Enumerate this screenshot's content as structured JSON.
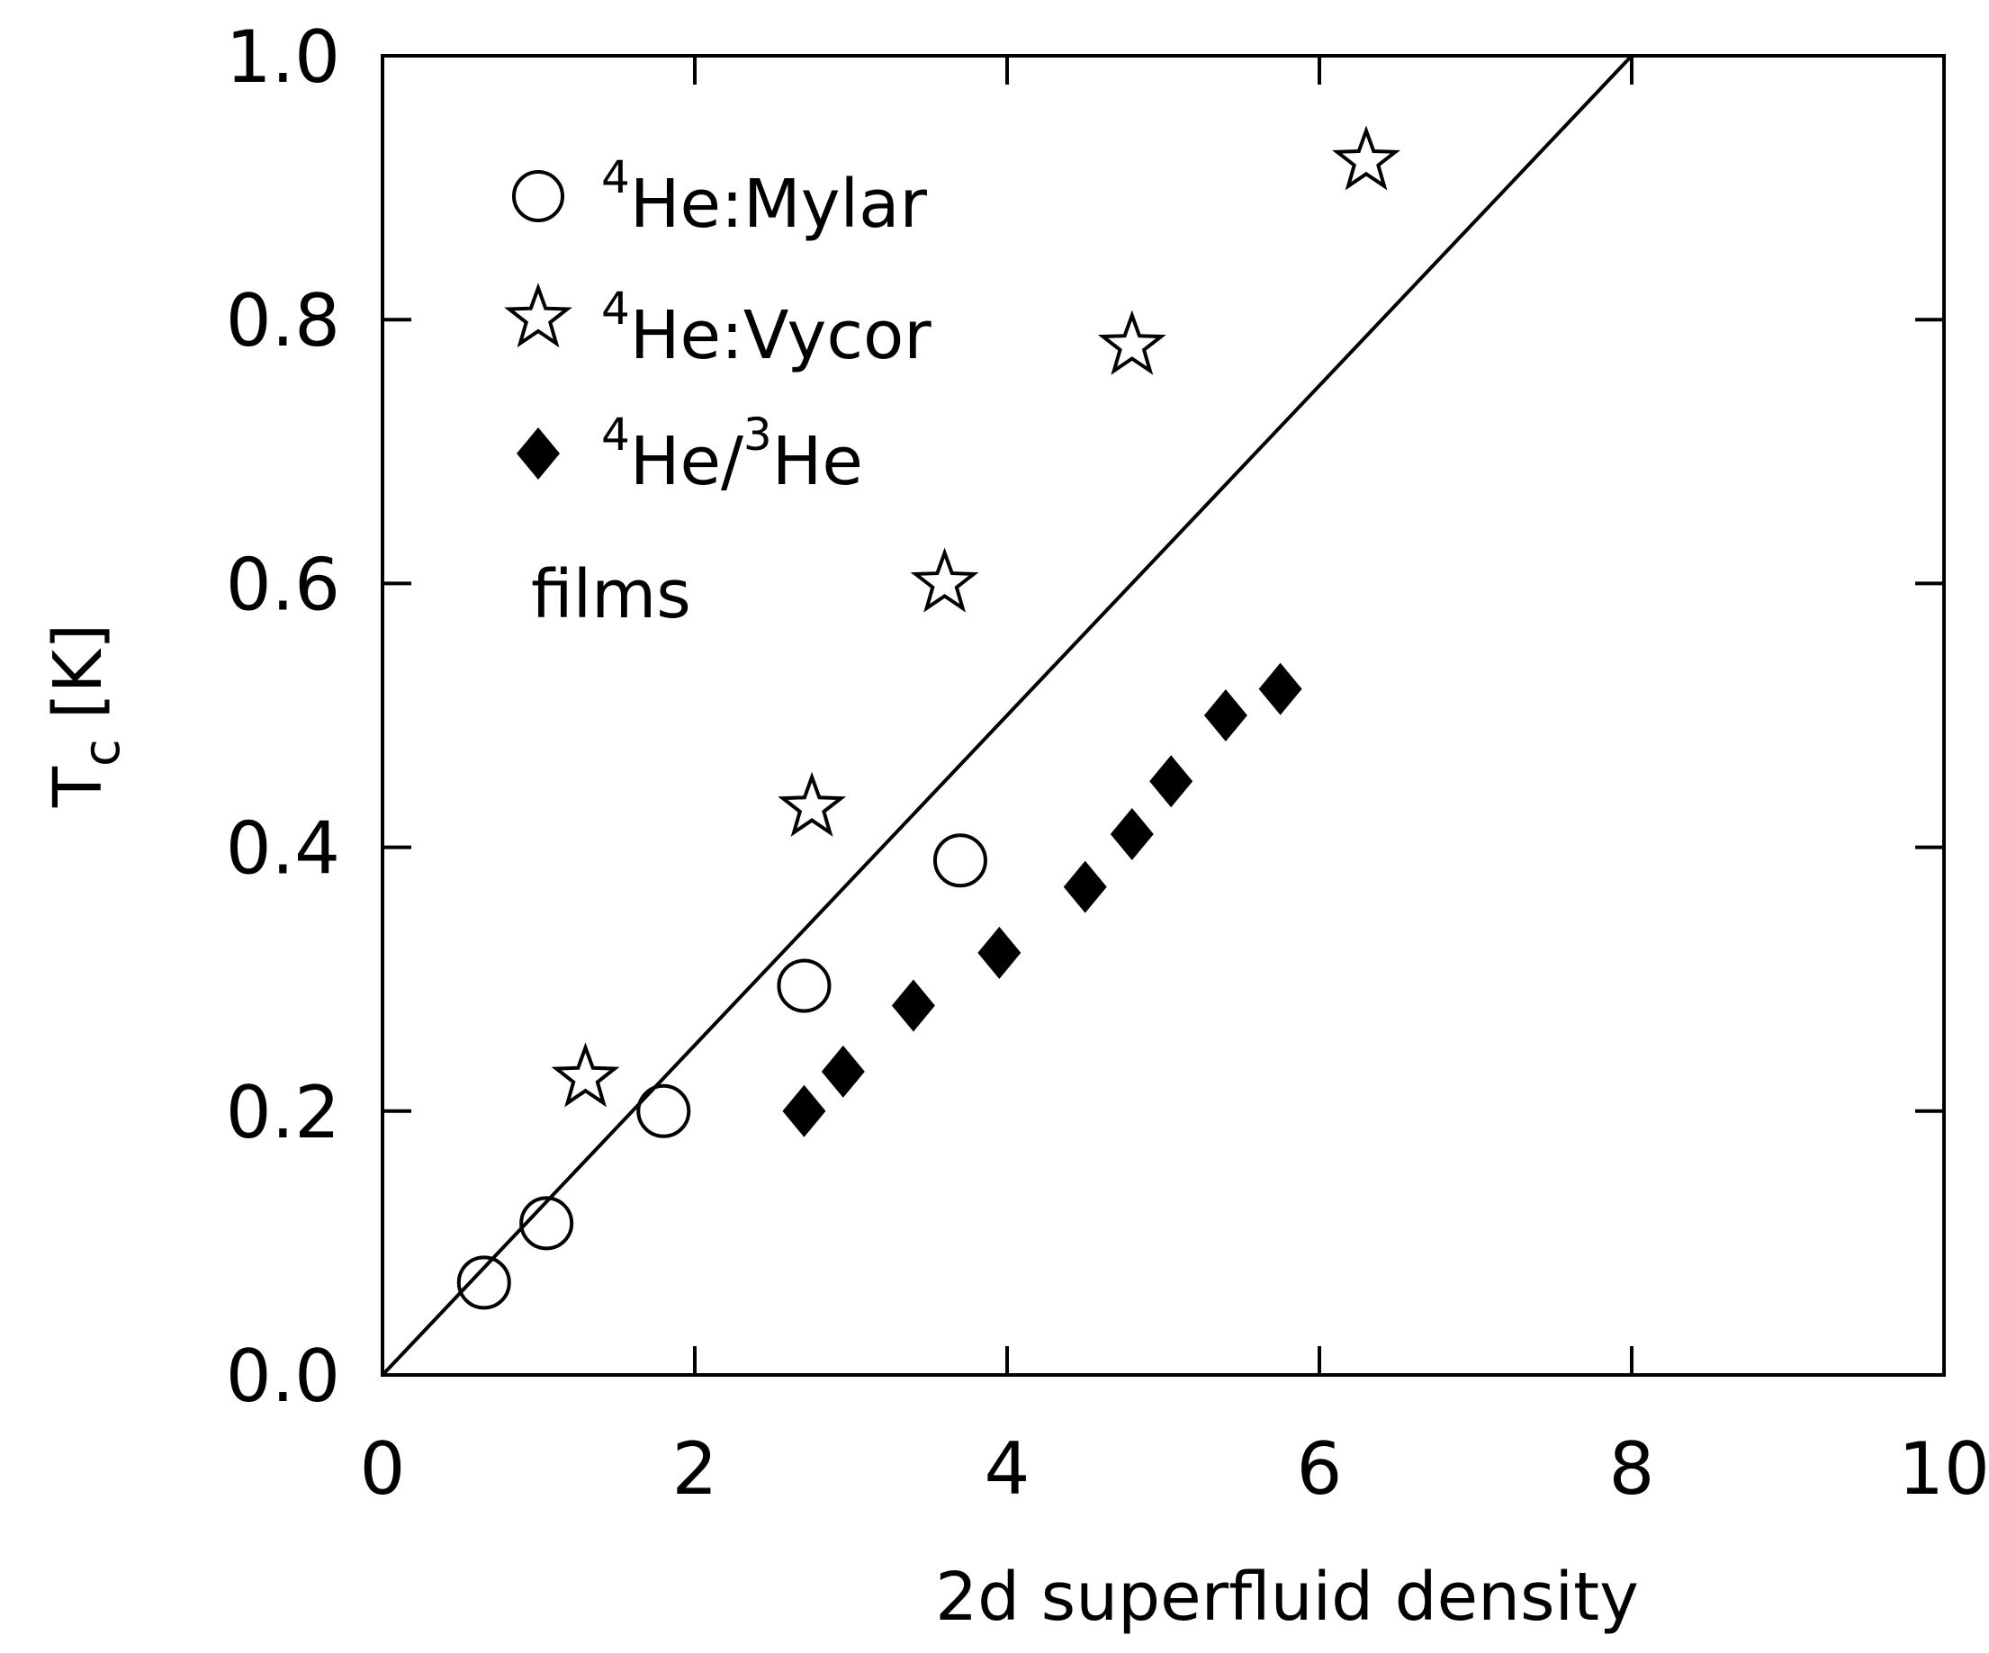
{
  "chart_data": {
    "type": "scatter",
    "title": "",
    "xlabel": "2d superfluid density",
    "ylabel_main": "T",
    "ylabel_sub": "c",
    "ylabel_unit": "[K]",
    "xlim": [
      0,
      10
    ],
    "ylim": [
      0,
      1.0
    ],
    "x_ticks": [
      0,
      2,
      4,
      6,
      8,
      10
    ],
    "x_tick_labels": [
      "0",
      "2",
      "4",
      "6",
      "8",
      "10"
    ],
    "y_ticks": [
      0,
      0.2,
      0.4,
      0.6,
      0.8,
      1.0
    ],
    "y_tick_labels": [
      "0.0",
      "0.2",
      "0.4",
      "0.6",
      "0.8",
      "1.0"
    ],
    "grid": false,
    "legend_position": "top-left",
    "line": {
      "name": "",
      "x": [
        0,
        8
      ],
      "y": [
        0,
        1.0
      ]
    },
    "series": [
      {
        "name_sup": "4",
        "name_text": "He:Mylar",
        "marker": "open-circle",
        "x": [
          0.65,
          1.05,
          1.8,
          2.7,
          3.7
        ],
        "y": [
          0.07,
          0.115,
          0.2,
          0.295,
          0.39
        ]
      },
      {
        "name_sup": "4",
        "name_text": "He:Vycor",
        "marker": "open-star",
        "x": [
          1.3,
          2.75,
          3.6,
          4.8,
          6.3
        ],
        "y": [
          0.225,
          0.43,
          0.6,
          0.78,
          0.92
        ]
      },
      {
        "name_sup": "4",
        "name_text": "He/",
        "name_sup2": "3",
        "name_text2": "He",
        "marker": "filled-diamond",
        "x": [
          2.7,
          2.95,
          3.4,
          3.95,
          4.5,
          4.8,
          5.05,
          5.4,
          5.75
        ],
        "y": [
          0.2,
          0.23,
          0.28,
          0.32,
          0.37,
          0.41,
          0.45,
          0.5,
          0.52
        ]
      }
    ],
    "annotation": "films"
  }
}
